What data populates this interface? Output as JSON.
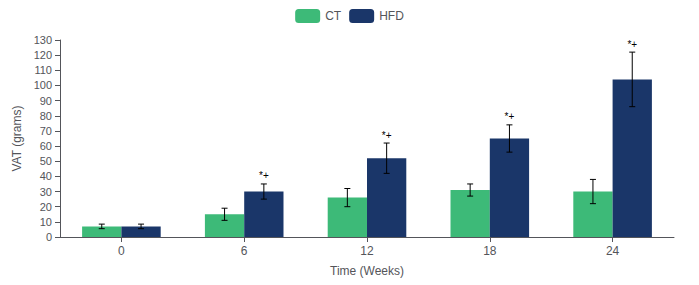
{
  "chart_data": {
    "type": "bar",
    "xlabel": "Time (Weeks)",
    "ylabel": "VAT (grams)",
    "categories": [
      "0",
      "6",
      "12",
      "18",
      "24"
    ],
    "series": [
      {
        "name": "CT",
        "color": "#3dba78",
        "values": [
          7,
          15,
          26,
          31,
          30
        ],
        "errors": [
          1.5,
          4,
          6,
          4,
          8
        ]
      },
      {
        "name": "HFD",
        "color": "#1a3669",
        "values": [
          7,
          30,
          52,
          65,
          104
        ],
        "errors": [
          1.5,
          5,
          10,
          9,
          18
        ]
      }
    ],
    "annotations": [
      {
        "text": "*+",
        "category": "6",
        "series": "HFD"
      },
      {
        "text": "*+",
        "category": "12",
        "series": "HFD"
      },
      {
        "text": "*+",
        "category": "18",
        "series": "HFD"
      },
      {
        "text": "*+",
        "category": "24",
        "series": "HFD"
      }
    ],
    "ylim": [
      0,
      130
    ],
    "yticks": [
      0,
      10,
      20,
      30,
      40,
      50,
      60,
      70,
      80,
      90,
      100,
      110,
      120,
      130
    ],
    "grid": false,
    "legend": "top"
  }
}
